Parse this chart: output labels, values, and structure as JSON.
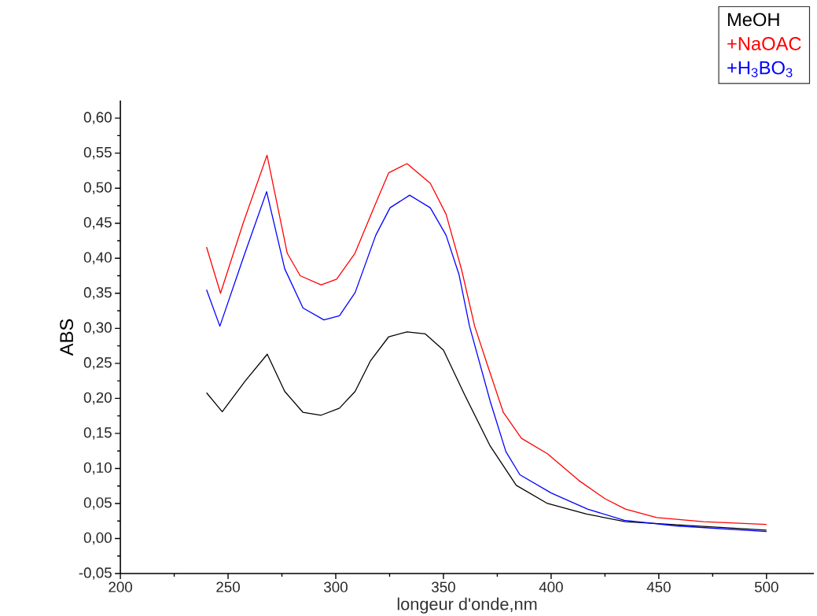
{
  "chart_data": {
    "type": "line",
    "xlabel": "longeur d'onde,nm",
    "ylabel": "ABS",
    "xlim": [
      200,
      522
    ],
    "ylim": [
      -0.05,
      0.625
    ],
    "xticks": [
      200,
      250,
      300,
      350,
      400,
      450,
      500
    ],
    "yticks": [
      {
        "value": -0.05,
        "label": "-0,05"
      },
      {
        "value": 0.0,
        "label": "0,00"
      },
      {
        "value": 0.05,
        "label": "0,05"
      },
      {
        "value": 0.1,
        "label": "0,10"
      },
      {
        "value": 0.15,
        "label": "0,15"
      },
      {
        "value": 0.2,
        "label": "0,20"
      },
      {
        "value": 0.25,
        "label": "0,25"
      },
      {
        "value": 0.3,
        "label": "0,30"
      },
      {
        "value": 0.35,
        "label": "0,35"
      },
      {
        "value": 0.4,
        "label": "0,40"
      },
      {
        "value": 0.45,
        "label": "0,45"
      },
      {
        "value": 0.5,
        "label": "0,50"
      },
      {
        "value": 0.55,
        "label": "0,55"
      },
      {
        "value": 0.6,
        "label": "0,60"
      }
    ],
    "grid": false,
    "legend": "top right",
    "marker": "none",
    "line_style": "solid",
    "series": [
      {
        "name": "MeOH",
        "color": "#000000",
        "x": [
          240,
          247.3,
          258,
          268.2,
          276.3,
          284.8,
          293.2,
          301.7,
          309,
          316.2,
          324.6,
          333.1,
          341.6,
          350,
          359.7,
          371.7,
          383.8,
          398.3,
          416.4,
          434.5,
          458.7,
          500
        ],
        "values": [
          0.208,
          0.181,
          0.225,
          0.263,
          0.21,
          0.18,
          0.176,
          0.186,
          0.21,
          0.254,
          0.288,
          0.295,
          0.292,
          0.269,
          0.206,
          0.132,
          0.076,
          0.05,
          0.035,
          0.024,
          null,
          0.012
        ]
      },
      {
        "name": "+NaOAC",
        "color": "#ff0000",
        "x": [
          240,
          246.5,
          257,
          268.1,
          277.5,
          283.5,
          293.2,
          300.4,
          308.9,
          317.4,
          324.6,
          333.1,
          343.9,
          351.2,
          358.4,
          364.5,
          370.5,
          377.8,
          386.2,
          398.3,
          412.8,
          424.9,
          434.5,
          449,
          470.8,
          500
        ],
        "values": [
          0.416,
          0.35,
          0.45,
          0.547,
          0.407,
          0.375,
          0.362,
          0.37,
          0.407,
          0.47,
          0.522,
          0.535,
          0.507,
          0.463,
          0.384,
          0.303,
          0.247,
          0.18,
          0.143,
          0.121,
          0.083,
          0.057,
          0.042,
          0.03,
          0.024,
          0.02
        ]
      },
      {
        "name": "+H$_{3}$BO$_{3}$",
        "color": "#0000ff",
        "x": [
          240,
          246.2,
          257,
          267.9,
          276.3,
          284.8,
          294.5,
          301.7,
          309,
          318.6,
          325.2,
          334.3,
          343.9,
          351.2,
          357.2,
          362.1,
          371.7,
          379,
          385.5,
          400,
          416.9,
          434,
          458.2,
          500
        ],
        "values": [
          0.355,
          0.303,
          0.4,
          0.495,
          0.385,
          0.329,
          0.312,
          0.318,
          0.351,
          0.433,
          0.472,
          0.49,
          0.472,
          0.433,
          0.377,
          0.303,
          0.196,
          0.124,
          0.091,
          0.065,
          0.042,
          0.026,
          0.018,
          0.01
        ]
      }
    ]
  }
}
